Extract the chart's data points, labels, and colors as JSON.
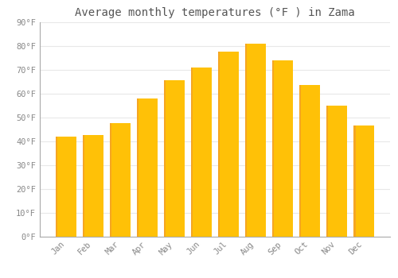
{
  "title": "Average monthly temperatures (°F ) in Zama",
  "months": [
    "Jan",
    "Feb",
    "Mar",
    "Apr",
    "May",
    "Jun",
    "Jul",
    "Aug",
    "Sep",
    "Oct",
    "Nov",
    "Dec"
  ],
  "values": [
    42,
    42.5,
    47.5,
    58,
    65.5,
    71,
    77.5,
    81,
    74,
    63.5,
    55,
    46.5
  ],
  "bar_color_main": "#FFC107",
  "bar_color_left": "#F5A623",
  "background_color": "#ffffff",
  "grid_color": "#e8e8e8",
  "text_color": "#888888",
  "ylim": [
    0,
    90
  ],
  "yticks": [
    0,
    10,
    20,
    30,
    40,
    50,
    60,
    70,
    80,
    90
  ],
  "ytick_labels": [
    "0°F",
    "10°F",
    "20°F",
    "30°F",
    "40°F",
    "50°F",
    "60°F",
    "70°F",
    "80°F",
    "90°F"
  ],
  "title_fontsize": 10,
  "tick_fontsize": 7.5
}
